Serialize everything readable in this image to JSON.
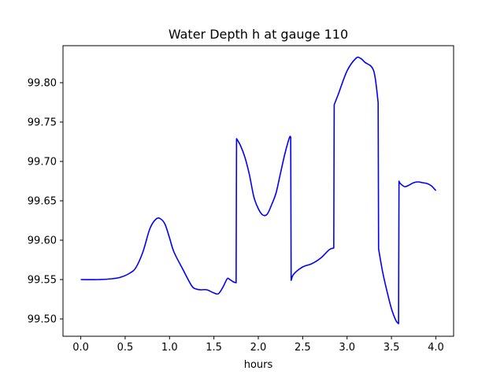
{
  "chart_data": {
    "type": "line",
    "title": "Water Depth h at gauge 110",
    "xlabel": "hours",
    "ylabel": "",
    "xlim": [
      -0.2,
      4.2
    ],
    "ylim": [
      99.478,
      99.847
    ],
    "xticks": [
      0.0,
      0.5,
      1.0,
      1.5,
      2.0,
      2.5,
      3.0,
      3.5,
      4.0
    ],
    "xtick_labels": [
      "0.0",
      "0.5",
      "1.0",
      "1.5",
      "2.0",
      "2.5",
      "3.0",
      "3.5",
      "4.0"
    ],
    "yticks": [
      99.5,
      99.55,
      99.6,
      99.65,
      99.7,
      99.75,
      99.8
    ],
    "ytick_labels": [
      "99.50",
      "99.55",
      "99.60",
      "99.65",
      "99.70",
      "99.75",
      "99.80"
    ],
    "grid": false,
    "legend": "none",
    "line_color": "#0000ff",
    "series": [
      {
        "x": [
          0.0,
          0.2,
          0.35,
          0.45,
          0.55,
          0.62,
          0.7,
          0.78,
          0.85,
          0.9,
          0.95,
          1.0,
          1.05,
          1.15,
          1.25,
          1.3,
          1.35,
          1.42,
          1.5,
          1.55,
          1.6,
          1.65,
          1.68,
          1.72,
          1.75,
          1.755,
          1.8,
          1.85,
          1.9,
          1.95,
          2.0,
          2.05,
          2.1,
          2.15,
          2.2,
          2.25,
          2.3,
          2.35,
          2.365,
          2.37,
          2.4,
          2.5,
          2.6,
          2.7,
          2.8,
          2.85,
          2.855,
          2.9,
          3.0,
          3.1,
          3.15,
          3.2,
          3.3,
          3.35,
          3.355,
          3.4,
          3.45,
          3.5,
          3.55,
          3.58,
          3.585,
          3.6,
          3.65,
          3.7,
          3.75,
          3.8,
          3.85,
          3.9,
          3.95,
          4.0
        ],
        "y": [
          99.55,
          99.55,
          99.551,
          99.553,
          99.558,
          99.565,
          99.585,
          99.615,
          99.627,
          99.627,
          99.62,
          99.603,
          99.585,
          99.563,
          99.542,
          99.538,
          99.537,
          99.537,
          99.533,
          99.532,
          99.54,
          99.551,
          99.55,
          99.547,
          99.546,
          99.729,
          99.72,
          99.705,
          99.683,
          99.655,
          99.64,
          99.632,
          99.633,
          99.645,
          99.66,
          99.685,
          99.71,
          99.73,
          99.731,
          99.549,
          99.557,
          99.566,
          99.57,
          99.577,
          99.588,
          99.59,
          99.772,
          99.785,
          99.815,
          99.831,
          99.831,
          99.826,
          99.815,
          99.775,
          99.589,
          99.56,
          99.535,
          99.513,
          99.498,
          99.494,
          99.675,
          99.672,
          99.668,
          99.67,
          99.673,
          99.674,
          99.673,
          99.672,
          99.669,
          99.663
        ]
      }
    ]
  }
}
